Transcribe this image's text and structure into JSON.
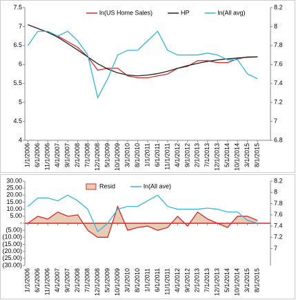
{
  "chart_data": [
    {
      "type": "line",
      "legend": "top",
      "categories": [
        "1/1/2006",
        "6/1/2006",
        "11/1/2006",
        "4/1/2007",
        "9/1/2007",
        "2/1/2008",
        "7/1/2008",
        "12/1/2008",
        "5/1/2009",
        "10/1/2009",
        "3/1/2010",
        "8/1/2010",
        "1/1/2011",
        "6/1/2011",
        "11/1/2011",
        "4/1/2012",
        "9/1/2012",
        "2/1/2013",
        "7/1/2013",
        "12/1/2013",
        "5/1/2014",
        "10/1/2014",
        "3/1/2015",
        "8/1/2015"
      ],
      "ylim": [
        4,
        7.5
      ],
      "yticks": [
        4,
        4.5,
        5,
        5.5,
        6,
        6.5,
        7,
        7.5
      ],
      "y2lim": [
        6.8,
        8.2
      ],
      "y2ticks": [
        6.8,
        7,
        7.2,
        7.4,
        7.6,
        7.8,
        8,
        8.2
      ],
      "series": [
        {
          "name": "ln(US Home Sales)",
          "color": "#d42a2a",
          "values": [
            7.05,
            6.95,
            6.85,
            6.75,
            6.6,
            6.45,
            6.2,
            5.85,
            5.9,
            5.9,
            5.7,
            5.65,
            5.65,
            5.7,
            5.75,
            5.9,
            5.95,
            6.1,
            6.1,
            6.05,
            6.05,
            6.15,
            6.2,
            6.2
          ]
        },
        {
          "name": "HP",
          "color": "#222222",
          "values": [
            7.05,
            6.95,
            6.85,
            6.72,
            6.55,
            6.38,
            6.2,
            6.02,
            5.88,
            5.78,
            5.72,
            5.7,
            5.72,
            5.76,
            5.82,
            5.9,
            5.97,
            6.03,
            6.08,
            6.12,
            6.15,
            6.17,
            6.19,
            6.2
          ]
        },
        {
          "name": "ln(All avg)",
          "color": "#33b5dc",
          "axis": "y2",
          "values": [
            7.8,
            7.95,
            7.95,
            7.9,
            7.95,
            7.85,
            7.7,
            7.25,
            7.45,
            7.7,
            7.75,
            7.75,
            7.85,
            7.95,
            7.75,
            7.7,
            7.7,
            7.7,
            7.72,
            7.7,
            7.65,
            7.65,
            7.5,
            7.45
          ]
        }
      ]
    },
    {
      "type": "line",
      "legend": "top",
      "categories": [
        "1/1/2006",
        "6/1/2006",
        "11/1/2006",
        "4/1/2007",
        "9/1/2007",
        "2/1/2008",
        "7/1/2008",
        "12/1/2008",
        "5/1/2009",
        "10/1/2009",
        "3/1/2010",
        "8/1/2010",
        "1/1/2011",
        "6/1/2011",
        "11/1/2011",
        "4/1/2012",
        "9/1/2012",
        "2/1/2013",
        "7/1/2013",
        "12/1/2013",
        "5/1/2014",
        "10/1/2014",
        "3/1/2015",
        "8/1/2015"
      ],
      "ylim": [
        -30,
        30
      ],
      "yticks": [
        {
          "value": 30,
          "label": "30.00"
        },
        {
          "value": 25,
          "label": "25.00"
        },
        {
          "value": 20,
          "label": "20.00"
        },
        {
          "value": 15,
          "label": "15.00"
        },
        {
          "value": 10,
          "label": "10.00"
        },
        {
          "value": 5,
          "label": "5.00"
        },
        {
          "value": 0,
          "label": "-"
        },
        {
          "value": -5,
          "label": "(5.00)"
        },
        {
          "value": -10,
          "label": "(10.00)"
        },
        {
          "value": -15,
          "label": "(15.00)"
        },
        {
          "value": -20,
          "label": "(20.00)"
        },
        {
          "value": -25,
          "label": "(25.00)"
        },
        {
          "value": -30,
          "label": "(30.00)"
        }
      ],
      "y2lim": [
        6.7,
        8.2
      ],
      "y2ticks": [
        7,
        7.2,
        7.4,
        7.6,
        7.8,
        8,
        8.2
      ],
      "series": [
        {
          "name": "Resid",
          "color": "#d42a2a",
          "fill": "#e8cdb6",
          "area": true,
          "values": [
            0,
            5,
            3,
            8,
            5,
            6,
            -5,
            -10,
            -10,
            12,
            -5,
            -3,
            -2,
            -5,
            -3,
            5,
            -2,
            8,
            3,
            0,
            -3,
            5,
            5,
            2
          ]
        },
        {
          "name": "ln(All ave)",
          "color": "#33b5dc",
          "axis": "y2",
          "values": [
            7.75,
            7.9,
            7.9,
            7.85,
            7.95,
            7.85,
            7.7,
            7.3,
            7.45,
            7.7,
            7.75,
            7.75,
            7.85,
            7.95,
            7.75,
            7.7,
            7.7,
            7.7,
            7.72,
            7.7,
            7.65,
            7.65,
            7.5,
            7.45
          ]
        }
      ]
    }
  ]
}
